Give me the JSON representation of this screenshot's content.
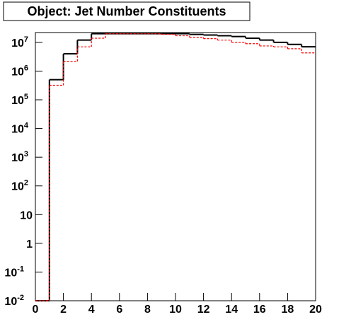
{
  "chart_data": {
    "type": "histogram",
    "title": "Object: Jet Number Constituents",
    "bins": [
      0,
      1,
      2,
      3,
      4,
      5,
      6,
      7,
      8,
      9,
      10,
      11,
      12,
      13,
      14,
      15,
      16,
      17,
      18,
      19,
      20
    ],
    "series": [
      {
        "color": "#000000",
        "dashed": false,
        "values": [
          0,
          500000,
          4000000,
          12000000,
          20000000,
          20000000,
          20000000,
          20000000,
          20000000,
          20000000,
          20000000,
          19000000,
          18000000,
          17000000,
          16000000,
          14000000,
          12000000,
          10000000,
          8500000,
          7000000
        ]
      },
      {
        "color": "#ff0000",
        "dashed": true,
        "values": [
          0,
          320000,
          2200000,
          7000000,
          14000000,
          20000000,
          20000000,
          20000000,
          20000000,
          19000000,
          17000000,
          15000000,
          13500000,
          12000000,
          10000000,
          9000000,
          7500000,
          7000000,
          6000000,
          4300000
        ]
      }
    ],
    "log_y": true,
    "xlim": [
      0,
      20
    ],
    "xticks": [
      0,
      2,
      4,
      6,
      8,
      10,
      12,
      14,
      16,
      18,
      20
    ],
    "ylim": [
      0.01,
      22000000
    ],
    "yticks": [
      {
        "value": 0.01,
        "label": "10",
        "exponent": "-2"
      },
      {
        "value": 0.1,
        "label": "10",
        "exponent": "-1"
      },
      1,
      10,
      {
        "value": 100,
        "label": "10",
        "exponent": "2"
      },
      {
        "value": 1000,
        "label": "10",
        "exponent": "3"
      },
      {
        "value": 10000,
        "label": "10",
        "exponent": "4"
      },
      {
        "value": 100000,
        "label": "10",
        "exponent": "5"
      },
      {
        "value": 1000000,
        "label": "10",
        "exponent": "6"
      },
      {
        "value": 10000000,
        "label": "10",
        "exponent": "7"
      }
    ]
  }
}
